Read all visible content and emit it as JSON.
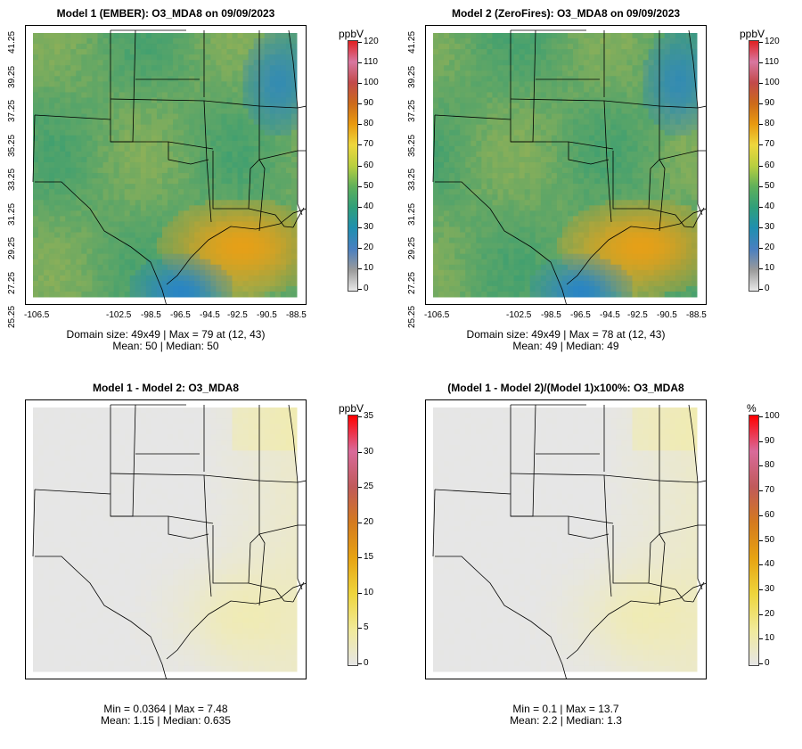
{
  "panels": [
    {
      "id": "p1",
      "title": "Model 1 (EMBER): O3_MDA8 on 09/09/2023",
      "unit": "ppbV",
      "colorbar": "full",
      "cb_ticks": [
        "120",
        "110",
        "100",
        "90",
        "80",
        "70",
        "60",
        "50",
        "40",
        "30",
        "20",
        "10",
        "0"
      ],
      "x_ticks": [
        "-106.5",
        "-102.5",
        "-98.5",
        "-96.5",
        "-94.5",
        "-92.5",
        "-90.5",
        "-88.5"
      ],
      "y_ticks": [
        "41.25",
        "39.25",
        "37.25",
        "35.25",
        "33.25",
        "31.25",
        "29.25",
        "27.25",
        "25.25"
      ],
      "stats_line1": "Domain size: 49x49 | Max = 79 at (12, 43)",
      "stats_line2": "Mean: 50 |  Median: 50"
    },
    {
      "id": "p2",
      "title": "Model 2 (ZeroFires): O3_MDA8 on 09/09/2023",
      "unit": "ppbV",
      "colorbar": "full",
      "cb_ticks": [
        "120",
        "110",
        "100",
        "90",
        "80",
        "70",
        "60",
        "50",
        "40",
        "30",
        "20",
        "10",
        "0"
      ],
      "x_ticks": [
        "-106.5",
        "-102.5",
        "-98.5",
        "-96.5",
        "-94.5",
        "-92.5",
        "-90.5",
        "-88.5"
      ],
      "y_ticks": [
        "41.25",
        "39.25",
        "37.25",
        "35.25",
        "33.25",
        "31.25",
        "29.25",
        "27.25",
        "25.25"
      ],
      "stats_line1": "Domain size: 49x49 | Max = 78 at (12, 43)",
      "stats_line2": "Mean: 49 |  Median: 49"
    },
    {
      "id": "p3",
      "title": "Model 1 - Model 2: O3_MDA8",
      "unit": "ppbV",
      "colorbar": "diff",
      "cb_ticks": [
        "35",
        "30",
        "25",
        "20",
        "15",
        "10",
        "5",
        "0"
      ],
      "stats_line1": "Min = 0.0364 | Max = 7.48",
      "stats_line2": "Mean: 1.15 |  Median: 0.635"
    },
    {
      "id": "p4",
      "title": "(Model 1 - Model 2)/(Model 1)x100%: O3_MDA8",
      "unit": "%",
      "colorbar": "diff",
      "cb_ticks": [
        "100",
        "90",
        "80",
        "70",
        "60",
        "50",
        "40",
        "30",
        "20",
        "10",
        "0"
      ],
      "stats_line1": "Min = 0.1 | Max = 13.7",
      "stats_line2": "Mean: 2.2 |  Median: 1.3"
    }
  ],
  "colors": {
    "full_scale": [
      "#e8e8e8",
      "#9a9a9a",
      "#4a7fc0",
      "#1f8fb0",
      "#2f9f7a",
      "#5fb05a",
      "#b9cf3f",
      "#eed73d",
      "#e99a10",
      "#cc6a1a",
      "#c24a4a",
      "#d877a0",
      "#e02020"
    ],
    "diff_scale": [
      "#e6e6e6",
      "#f1ea9a",
      "#eed53c",
      "#e7a312",
      "#d47a1e",
      "#c05a5a",
      "#d96a9a",
      "#ff0000"
    ],
    "map_green": "#3a9e72",
    "map_high": "#eec53a",
    "map_orange": "#e5a018",
    "map_low": "#2a85c4",
    "diff_base": "#e6e6e6",
    "diff_yellow": "#f2eca8"
  }
}
